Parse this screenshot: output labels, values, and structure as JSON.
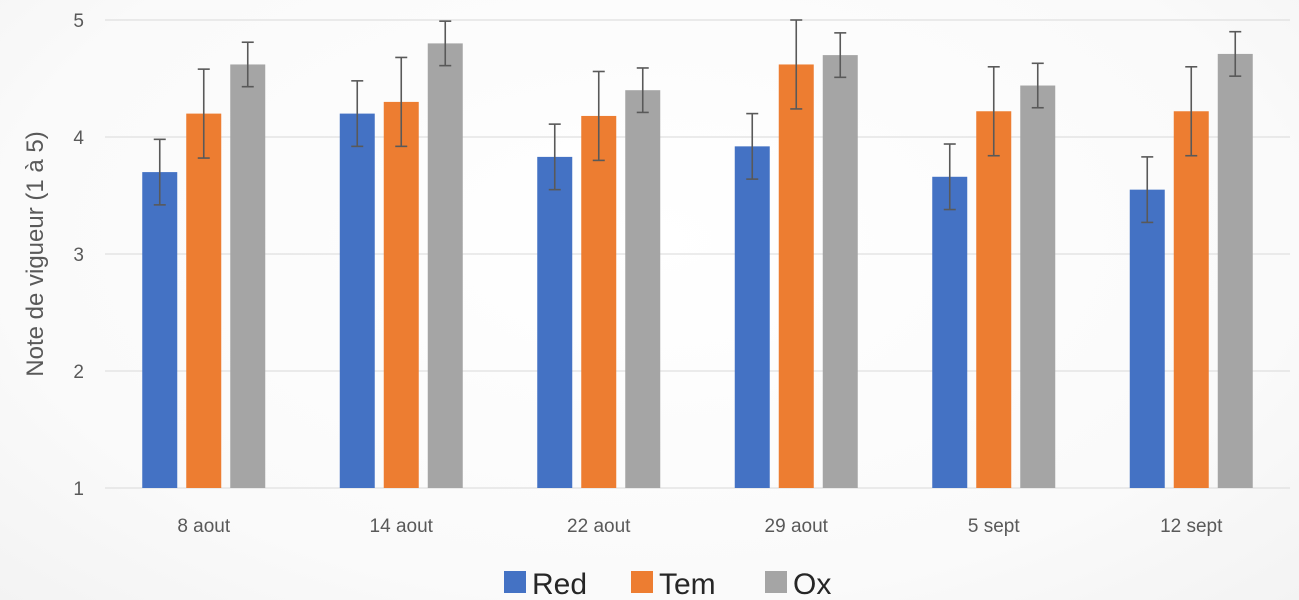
{
  "chart_data": {
    "type": "bar",
    "title": "",
    "xlabel": "",
    "ylabel": "Note de vigueur (1 à 5)",
    "categories": [
      "8 aout",
      "14 aout",
      "22 aout",
      "29 aout",
      "5 sept",
      "12 sept"
    ],
    "ylim": [
      1,
      5
    ],
    "yticks": [
      1,
      2,
      3,
      4,
      5
    ],
    "grid": true,
    "legend_position": "bottom",
    "series": [
      {
        "name": "Red",
        "color": "#4472C4",
        "values": [
          3.7,
          4.2,
          3.83,
          3.92,
          3.66,
          3.55
        ],
        "errors": [
          0.28,
          0.28,
          0.28,
          0.28,
          0.28,
          0.28
        ]
      },
      {
        "name": "Tem",
        "color": "#ED7D31",
        "values": [
          4.2,
          4.3,
          4.18,
          4.62,
          4.22,
          4.22
        ],
        "errors": [
          0.38,
          0.38,
          0.38,
          0.38,
          0.38,
          0.38
        ]
      },
      {
        "name": "Ox",
        "color": "#A5A5A5",
        "values": [
          4.62,
          4.8,
          4.4,
          4.7,
          4.44,
          4.71
        ],
        "errors": [
          0.19,
          0.19,
          0.19,
          0.19,
          0.19,
          0.19
        ]
      }
    ]
  }
}
